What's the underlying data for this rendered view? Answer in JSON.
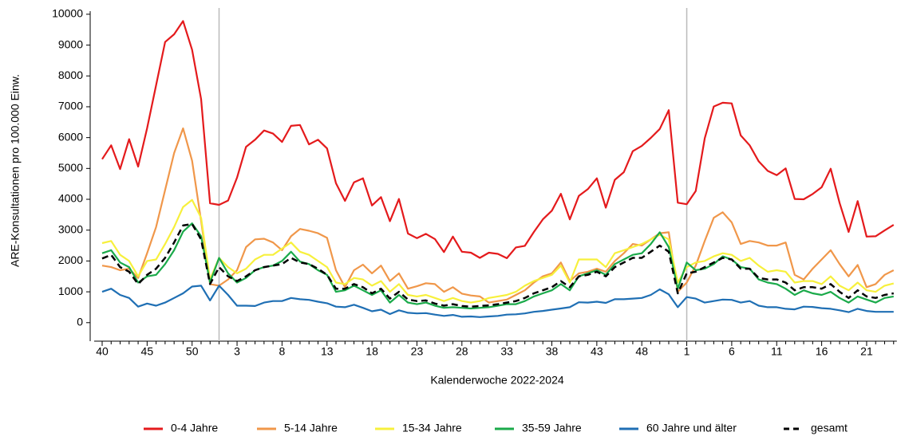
{
  "chart_data": {
    "type": "line",
    "y_label": "ARE-Konsultationen pro 100.000 Einw.",
    "x_label": "Kalenderwoche 2022-2024",
    "categories": [
      "40",
      null,
      null,
      null,
      null,
      "45",
      null,
      null,
      null,
      null,
      "50",
      null,
      null,
      null,
      null,
      "3",
      null,
      null,
      null,
      null,
      "8",
      null,
      null,
      null,
      null,
      "13",
      null,
      null,
      null,
      null,
      "18",
      null,
      null,
      null,
      null,
      "23",
      null,
      null,
      null,
      null,
      "28",
      null,
      null,
      null,
      null,
      "33",
      null,
      null,
      null,
      null,
      "38",
      null,
      null,
      null,
      null,
      "43",
      null,
      null,
      null,
      null,
      "48",
      null,
      null,
      null,
      null,
      "1",
      null,
      null,
      null,
      null,
      "6",
      null,
      null,
      null,
      null,
      "11",
      null,
      null,
      null,
      null,
      "16",
      null,
      null,
      null,
      null,
      "21",
      null,
      null,
      null
    ],
    "ylim": [
      -600,
      10100
    ],
    "yticks": [
      0,
      1000,
      2000,
      3000,
      4000,
      5000,
      6000,
      7000,
      8000,
      9000,
      10000
    ],
    "vertical_lines": [
      13,
      65
    ],
    "series": [
      {
        "name": "0-4 Jahre",
        "color": "#e41a1c",
        "style": "solid",
        "values": [
          5300,
          5750,
          4980,
          5950,
          5060,
          6300,
          7700,
          9100,
          9350,
          9780,
          8850,
          7250,
          3870,
          3820,
          3960,
          4700,
          5700,
          5930,
          6230,
          6130,
          5860,
          6380,
          6410,
          5780,
          5930,
          5650,
          4520,
          3950,
          4550,
          4680,
          3800,
          4070,
          3290,
          4010,
          2890,
          2740,
          2880,
          2710,
          2290,
          2790,
          2300,
          2270,
          2100,
          2270,
          2230,
          2090,
          2440,
          2490,
          2940,
          3350,
          3630,
          4180,
          3350,
          4110,
          4330,
          4680,
          3730,
          4630,
          4880,
          5560,
          5730,
          5990,
          6280,
          6890,
          3890,
          3840,
          4270,
          5980,
          7010,
          7130,
          7110,
          6070,
          5750,
          5230,
          4920,
          4780,
          5000,
          4010,
          4000,
          4170,
          4390,
          4990,
          3880,
          2940,
          3940,
          2790,
          2800,
          2990,
          3170
        ]
      },
      {
        "name": "5-14 Jahre",
        "color": "#f0974a",
        "style": "solid",
        "values": [
          1850,
          1800,
          1700,
          1750,
          1450,
          2250,
          3100,
          4300,
          5500,
          6300,
          5250,
          3300,
          1250,
          1200,
          1400,
          1700,
          2450,
          2700,
          2720,
          2600,
          2350,
          2800,
          3040,
          2980,
          2900,
          2750,
          1700,
          1150,
          1700,
          1880,
          1600,
          1850,
          1350,
          1600,
          1100,
          1180,
          1280,
          1250,
          1000,
          1150,
          940,
          880,
          850,
          650,
          700,
          750,
          900,
          1050,
          1300,
          1500,
          1600,
          1950,
          1350,
          1600,
          1650,
          1750,
          1650,
          2000,
          2250,
          2550,
          2500,
          2700,
          2900,
          2930,
          1000,
          1300,
          1850,
          2650,
          3400,
          3580,
          3250,
          2550,
          2650,
          2600,
          2500,
          2500,
          2600,
          1550,
          1400,
          1750,
          2050,
          2350,
          1900,
          1500,
          1870,
          1150,
          1250,
          1550,
          1700
        ]
      },
      {
        "name": "15-34 Jahre",
        "color": "#f7f03c",
        "style": "solid",
        "values": [
          2580,
          2650,
          2200,
          2000,
          1500,
          2000,
          2050,
          2550,
          3100,
          3750,
          3980,
          3400,
          1400,
          2100,
          1800,
          1600,
          1750,
          2050,
          2200,
          2200,
          2400,
          2600,
          2300,
          2200,
          2000,
          1800,
          1300,
          1250,
          1450,
          1400,
          1200,
          1350,
          1000,
          1250,
          900,
          850,
          900,
          800,
          700,
          800,
          700,
          650,
          700,
          800,
          850,
          900,
          1000,
          1200,
          1350,
          1450,
          1550,
          1850,
          1300,
          2050,
          2050,
          2050,
          1800,
          2250,
          2350,
          2450,
          2550,
          2700,
          2850,
          2700,
          1300,
          1800,
          1950,
          2000,
          2150,
          2250,
          2200,
          2000,
          2100,
          1850,
          1650,
          1700,
          1650,
          1300,
          1350,
          1350,
          1250,
          1500,
          1200,
          1050,
          1300,
          1050,
          1000,
          1200,
          1270
        ]
      },
      {
        "name": "35-59 Jahre",
        "color": "#1aaa4a",
        "style": "solid",
        "values": [
          2250,
          2350,
          1950,
          1800,
          1300,
          1500,
          1550,
          1900,
          2350,
          2950,
          3220,
          2800,
          1300,
          2100,
          1600,
          1300,
          1450,
          1700,
          1800,
          1850,
          2000,
          2300,
          1980,
          1900,
          1700,
          1550,
          1000,
          1050,
          1200,
          1050,
          900,
          1050,
          650,
          900,
          650,
          600,
          650,
          550,
          480,
          500,
          480,
          460,
          480,
          500,
          550,
          600,
          600,
          700,
          850,
          950,
          1050,
          1250,
          1050,
          1500,
          1600,
          1700,
          1550,
          1900,
          2050,
          2200,
          2250,
          2550,
          2930,
          2450,
          1100,
          1950,
          1700,
          1750,
          1900,
          2150,
          2050,
          1800,
          1750,
          1400,
          1300,
          1250,
          1100,
          900,
          1050,
          950,
          900,
          1000,
          800,
          650,
          850,
          750,
          650,
          800,
          850
        ]
      },
      {
        "name": "60 Jahre und älter",
        "color": "#1f6fb4",
        "style": "solid",
        "values": [
          1000,
          1100,
          900,
          800,
          520,
          620,
          550,
          650,
          800,
          950,
          1170,
          1200,
          720,
          1200,
          900,
          550,
          550,
          540,
          650,
          700,
          700,
          800,
          760,
          740,
          680,
          630,
          520,
          500,
          580,
          480,
          370,
          420,
          280,
          400,
          320,
          300,
          310,
          260,
          220,
          250,
          190,
          200,
          180,
          200,
          220,
          260,
          270,
          300,
          350,
          380,
          420,
          460,
          500,
          660,
          650,
          680,
          640,
          760,
          760,
          780,
          800,
          900,
          1080,
          920,
          500,
          830,
          780,
          650,
          700,
          750,
          740,
          650,
          700,
          550,
          500,
          500,
          450,
          430,
          520,
          510,
          470,
          450,
          400,
          340,
          450,
          380,
          350,
          350,
          350
        ]
      },
      {
        "name": "gesamt",
        "color": "#000000",
        "style": "dashed",
        "values": [
          2080,
          2200,
          1800,
          1650,
          1250,
          1550,
          1750,
          2100,
          2600,
          3150,
          3200,
          2700,
          1250,
          1800,
          1500,
          1350,
          1500,
          1700,
          1800,
          1850,
          1900,
          2100,
          1950,
          1900,
          1750,
          1550,
          1100,
          1100,
          1250,
          1150,
          950,
          1100,
          780,
          1000,
          750,
          700,
          720,
          620,
          550,
          600,
          540,
          520,
          540,
          560,
          600,
          650,
          700,
          800,
          950,
          1050,
          1150,
          1350,
          1150,
          1500,
          1550,
          1650,
          1500,
          1800,
          1950,
          2100,
          2100,
          2300,
          2500,
          2300,
          950,
          1600,
          1650,
          1800,
          1950,
          2100,
          2050,
          1750,
          1750,
          1450,
          1400,
          1400,
          1300,
          1050,
          1150,
          1150,
          1100,
          1250,
          1000,
          800,
          1050,
          850,
          800,
          900,
          950
        ]
      }
    ]
  }
}
